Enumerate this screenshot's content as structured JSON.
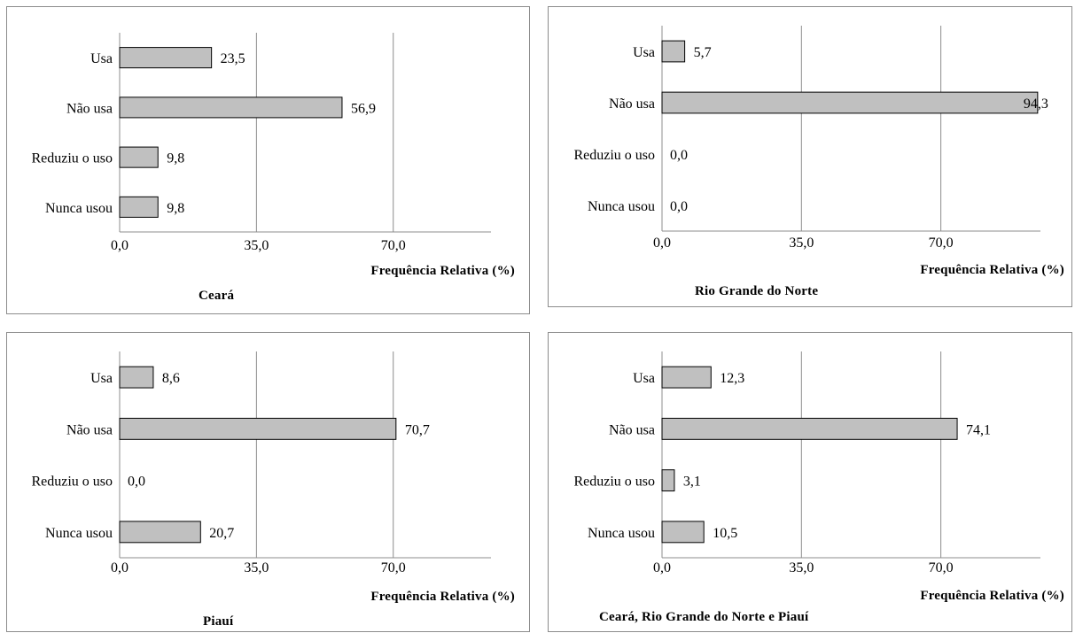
{
  "colors": {
    "bar_fill": "#c0c0c0",
    "bar_stroke": "#000000",
    "gridline": "#8c8c8c",
    "frame": "#8c8c8c"
  },
  "chart_data": [
    {
      "type": "bar",
      "orientation": "horizontal",
      "title": "Ceará",
      "xlabel": "Frequência Relativa (%)",
      "categories": [
        "Usa",
        "Não usa",
        "Reduziu o uso",
        "Nunca usou"
      ],
      "values": [
        23.5,
        56.9,
        9.8,
        9.8
      ],
      "value_labels": [
        "23,5",
        "56,9",
        "9,8",
        "9,8"
      ],
      "xticks": [
        "0,0",
        "35,0",
        "70,0"
      ],
      "xlim": [
        0,
        95
      ],
      "grid": true
    },
    {
      "type": "bar",
      "orientation": "horizontal",
      "title": "Rio Grande do Norte",
      "xlabel": "Frequência Relativa (%)",
      "categories": [
        "Usa",
        "Não usa",
        "Reduziu o uso",
        "Nunca usou"
      ],
      "values": [
        5.7,
        94.3,
        0.0,
        0.0
      ],
      "value_labels": [
        "5,7",
        "94,3",
        "0,0",
        "0,0"
      ],
      "xticks": [
        "0,0",
        "35,0",
        "70,0"
      ],
      "xlim": [
        0,
        95
      ],
      "grid": true
    },
    {
      "type": "bar",
      "orientation": "horizontal",
      "title": "Piauí",
      "xlabel": "Frequência Relativa (%)",
      "categories": [
        "Usa",
        "Não usa",
        "Reduziu o uso",
        "Nunca usou"
      ],
      "values": [
        8.6,
        70.7,
        0.0,
        20.7
      ],
      "value_labels": [
        "8,6",
        "70,7",
        "0,0",
        "20,7"
      ],
      "xticks": [
        "0,0",
        "35,0",
        "70,0"
      ],
      "xlim": [
        0,
        95
      ],
      "grid": true
    },
    {
      "type": "bar",
      "orientation": "horizontal",
      "title": "Ceará, Rio Grande do Norte e Piauí",
      "xlabel": "Frequência Relativa (%)",
      "categories": [
        "Usa",
        "Não usa",
        "Reduziu o uso",
        "Nunca usou"
      ],
      "values": [
        12.3,
        74.1,
        3.1,
        10.5
      ],
      "value_labels": [
        "12,3",
        "74,1",
        "3,1",
        "10,5"
      ],
      "xticks": [
        "0,0",
        "35,0",
        "70,0"
      ],
      "xlim": [
        0,
        95
      ],
      "grid": true
    }
  ]
}
